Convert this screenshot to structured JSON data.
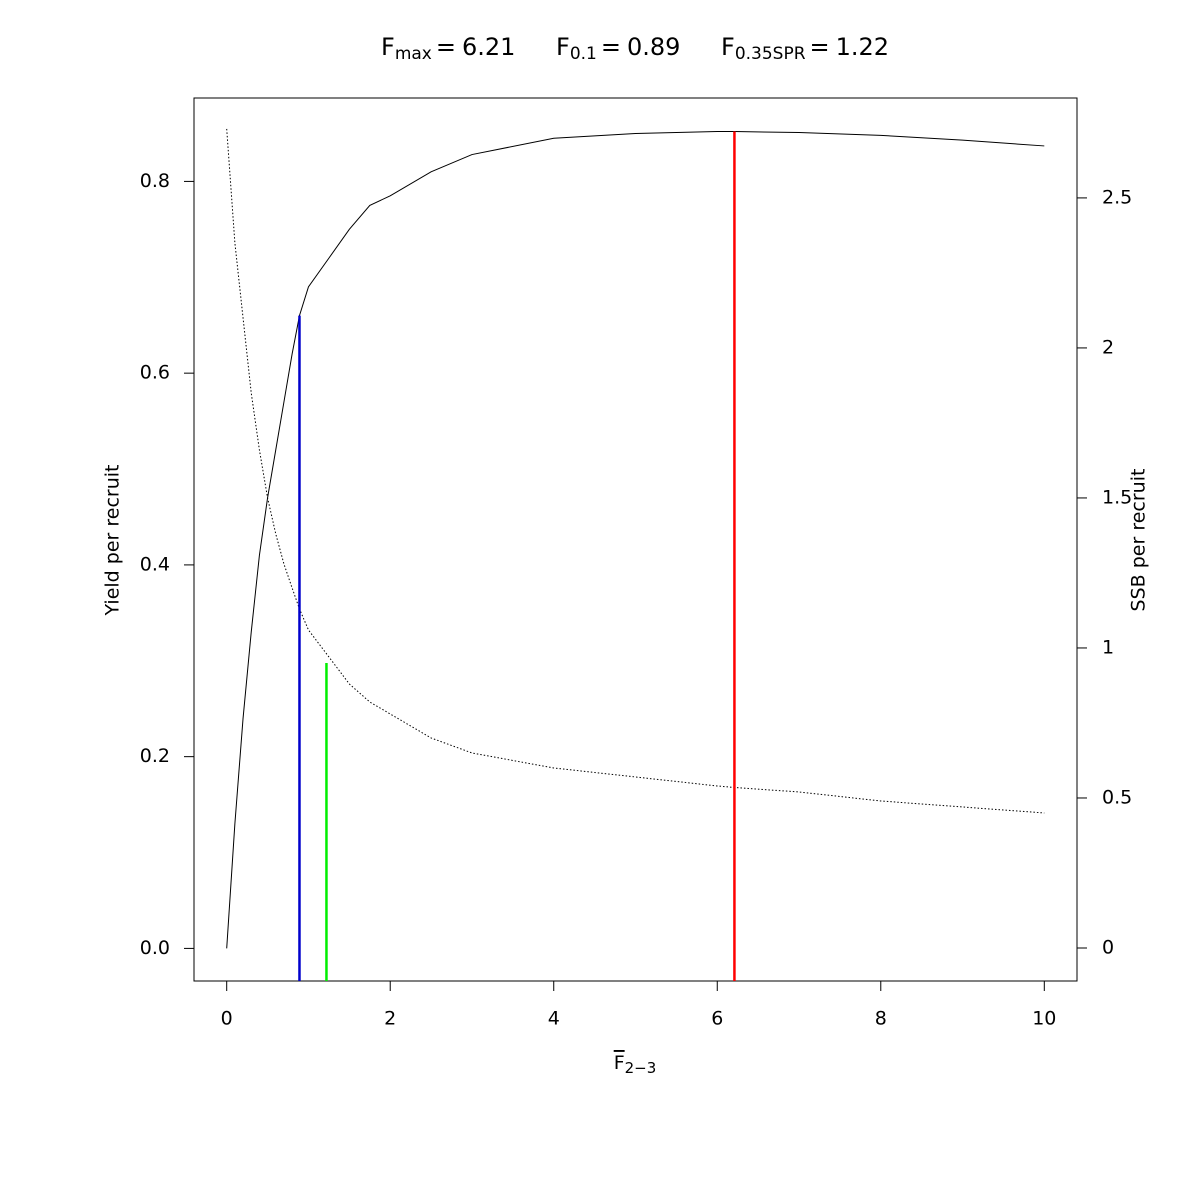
{
  "chart_data": {
    "type": "line",
    "reference_lines": [
      {
        "label": "F",
        "subscript": "max",
        "separator": "=",
        "value": 6.21,
        "top": 0.852,
        "axis": "y",
        "color": "#ff0000"
      },
      {
        "label": "F",
        "subscript": "0.1",
        "separator": "=",
        "value": 0.89,
        "top": 0.66,
        "axis": "y",
        "color": "#0000cc"
      },
      {
        "label": "F",
        "subscript": "0.35SPR",
        "separator": "=",
        "value": 1.22,
        "top": 0.95,
        "axis": "y2",
        "color": "#00ee00"
      }
    ],
    "xlabel": {
      "text": "F",
      "subscript": "2−3"
    },
    "ylabel": "Yield per recruit",
    "y2label": "SSB per recruit",
    "x": [
      0,
      0.1,
      0.2,
      0.3,
      0.4,
      0.5,
      0.6,
      0.7,
      0.8,
      0.89,
      1,
      1.25,
      1.5,
      1.75,
      2,
      2.5,
      3,
      4,
      5,
      6,
      6.21,
      7,
      8,
      9,
      10
    ],
    "series": [
      {
        "name": "Yield per recruit",
        "color": "#000000",
        "linestyle": "solid",
        "axis": "y",
        "values": [
          0,
          0.13,
          0.24,
          0.33,
          0.41,
          0.47,
          0.52,
          0.57,
          0.62,
          0.66,
          0.69,
          0.72,
          0.75,
          0.775,
          0.785,
          0.81,
          0.828,
          0.845,
          0.85,
          0.852,
          0.852,
          0.851,
          0.848,
          0.843,
          0.837
        ]
      },
      {
        "name": "SSB per recruit",
        "color": "#000000",
        "linestyle": "dotted",
        "axis": "y2",
        "values": [
          2.73,
          2.35,
          2.1,
          1.85,
          1.66,
          1.5,
          1.38,
          1.28,
          1.2,
          1.13,
          1.06,
          0.97,
          0.88,
          0.82,
          0.78,
          0.7,
          0.65,
          0.6,
          0.57,
          0.54,
          0.535,
          0.52,
          0.49,
          0.47,
          0.45
        ]
      }
    ],
    "xlim": [
      -0.4,
      10.4
    ],
    "xticks": [
      0,
      2,
      4,
      6,
      8,
      10
    ],
    "ylim": [
      -0.034,
      0.887
    ],
    "yticks": [
      {
        "value": 0,
        "label": "0.0"
      },
      0.2,
      0.4,
      0.6,
      0.8
    ],
    "y2lim": [
      -0.11,
      2.833
    ],
    "y2ticks": [
      0,
      0.5,
      1,
      1.5,
      2,
      2.5
    ]
  }
}
